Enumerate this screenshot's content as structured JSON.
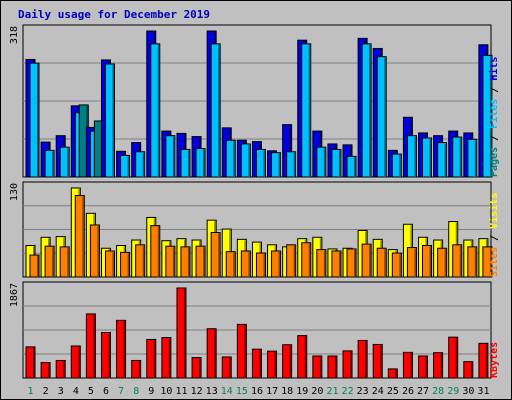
{
  "title": "Daily usage for December 2019",
  "chart_data": {
    "type": "bar",
    "title": "Daily usage for December 2019",
    "categories": [
      "1",
      "2",
      "3",
      "4",
      "5",
      "6",
      "7",
      "8",
      "9",
      "10",
      "11",
      "12",
      "13",
      "14",
      "15",
      "16",
      "17",
      "18",
      "19",
      "20",
      "21",
      "22",
      "23",
      "24",
      "25",
      "26",
      "27",
      "28",
      "29",
      "30",
      "31"
    ],
    "weekend_days": [
      "1",
      "7",
      "8",
      "14",
      "15",
      "21",
      "22",
      "28",
      "29"
    ],
    "panels": [
      {
        "id": "pages_files_hits",
        "ymax_label": "318",
        "ymax": 318,
        "legend": [
          "Pages",
          "Files",
          "Hits"
        ],
        "legend_separator": " / ",
        "series": [
          {
            "name": "Hits",
            "color": "#0000e0",
            "values": [
              256,
              76,
              90,
              155,
              108,
              255,
              56,
              75,
              318,
              100,
              95,
              88,
              318,
              107,
              80,
              77,
              57,
              114,
              298,
              100,
              72,
              70,
              302,
              280,
              58,
              130,
              96,
              90,
              100,
              96,
              288
            ]
          },
          {
            "name": "Files",
            "color": "#00c0ff",
            "values": [
              248,
              58,
              65,
              140,
              100,
              246,
              47,
              55,
              290,
              90,
              60,
              62,
              290,
              80,
              72,
              60,
              53,
              55,
              290,
              65,
              60,
              45,
              290,
              262,
              50,
              90,
              85,
              75,
              87,
              82,
              265
            ]
          },
          {
            "name": "Pages",
            "color": "#008080",
            "values": [
              0,
              0,
              0,
              157,
              122,
              0,
              0,
              0,
              0,
              0,
              0,
              0,
              0,
              0,
              0,
              0,
              0,
              0,
              0,
              0,
              0,
              0,
              0,
              0,
              0,
              0,
              0,
              0,
              0,
              0,
              0
            ]
          }
        ]
      },
      {
        "id": "visits_sites",
        "ymax_label": "130",
        "ymax": 130,
        "legend": [
          "Sites",
          "Visits"
        ],
        "legend_separator": " / ",
        "series": [
          {
            "name": "Visits",
            "color": "#ffff00",
            "values": [
              46,
              58,
              59,
              130,
              93,
              42,
              46,
              54,
              87,
              53,
              56,
              54,
              83,
              70,
              55,
              51,
              47,
              44,
              56,
              58,
              41,
              42,
              68,
              55,
              40,
              77,
              58,
              54,
              81,
              54,
              56
            ]
          },
          {
            "name": "Sites",
            "color": "#ff8000",
            "values": [
              32,
              45,
              44,
              119,
              76,
              38,
              36,
              47,
              75,
              45,
              44,
              45,
              65,
              37,
              38,
              35,
              38,
              47,
              50,
              40,
              38,
              41,
              48,
              42,
              35,
              43,
              46,
              42,
              47,
              44,
              44
            ]
          }
        ]
      },
      {
        "id": "kbytes",
        "ymax_label": "1867",
        "ymax": 1867,
        "legend": [
          "KBytes"
        ],
        "legend_separator": "",
        "series": [
          {
            "name": "KBytes",
            "color": "#ff0000",
            "values": [
              646,
              320,
              364,
              664,
              1329,
              944,
              1196,
              364,
              800,
              839,
              1867,
              424,
              1022,
              437,
              1112,
              598,
              557,
              690,
              879,
              456,
              456,
              563,
              779,
              696,
              189,
              532,
              456,
              525,
              847,
              339,
              719
            ]
          }
        ]
      }
    ]
  }
}
